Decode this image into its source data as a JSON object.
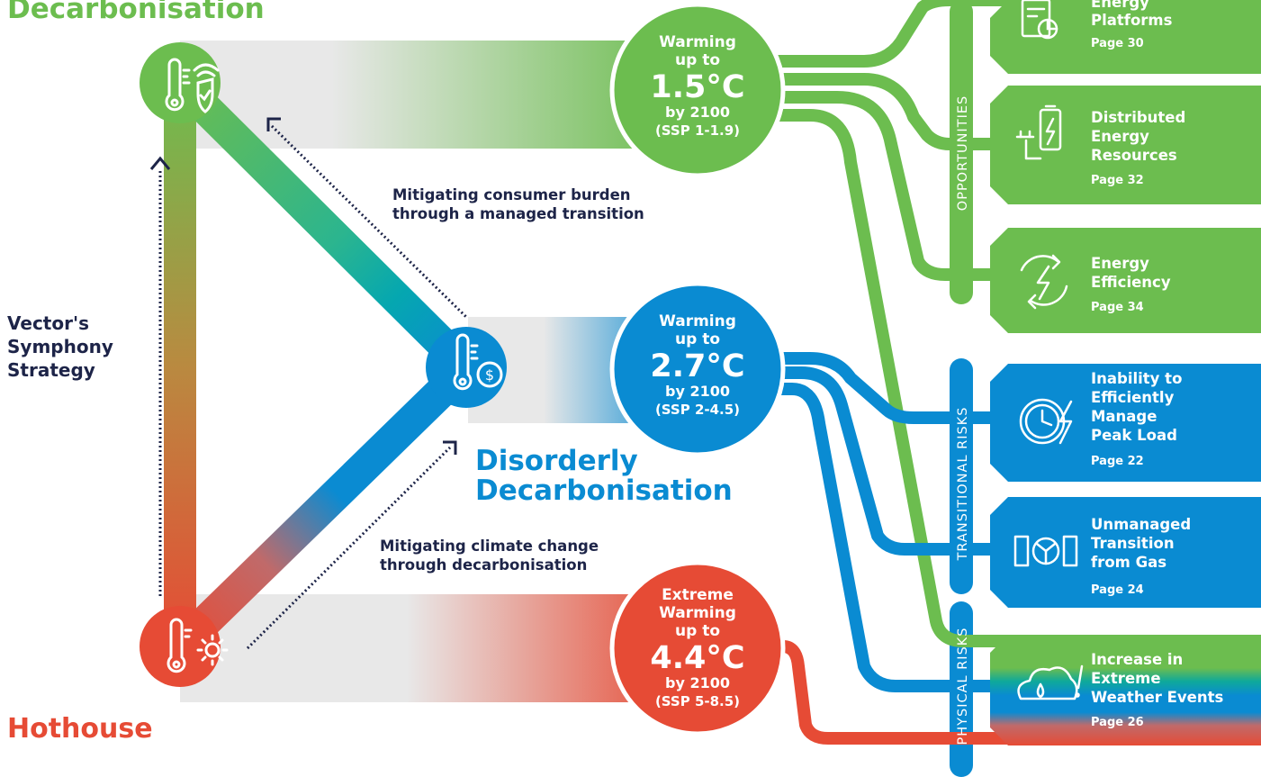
{
  "colors": {
    "green": "#6cbd4f",
    "blue": "#0a8bd2",
    "red": "#e64b35",
    "navy": "#1d2448",
    "grey": "#e8e8e8"
  },
  "scenarios": {
    "orderly": {
      "label": "Decarbonisation",
      "icon": "thermometer-shield-icon",
      "bubble": [
        "Warming",
        "up to",
        "1.5°C",
        "by 2100",
        "(SSP 1-1.9)"
      ]
    },
    "disorderly": {
      "label_line1": "Disorderly",
      "label_line2": "Decarbonisation",
      "icon": "thermometer-dollar-icon",
      "bubble": [
        "Warming",
        "up to",
        "2.7°C",
        "by 2100",
        "(SSP 2-4.5)"
      ]
    },
    "hothouse": {
      "label": "Hothouse",
      "icon": "thermometer-sun-icon",
      "bubble": [
        "Extreme",
        "Warming",
        "up to",
        "4.4°C",
        "by 2100",
        "(SSP 5-8.5)"
      ]
    }
  },
  "strategy": [
    "Vector's",
    "Symphony",
    "Strategy"
  ],
  "annotations": {
    "top": [
      "Mitigating consumer burden",
      "through a managed transition"
    ],
    "bottom": [
      "Mitigating climate change",
      "through decarbonisation"
    ]
  },
  "categories": {
    "opportunities": "OPPORTUNITIES",
    "transitional": "TRANSITIONAL RISKS",
    "physical": "PHYSICAL RISKS"
  },
  "cards": [
    {
      "icon": "platform-chart-icon",
      "lines": [
        "Energy",
        "Platforms"
      ],
      "page": "Page 30"
    },
    {
      "icon": "battery-plug-icon",
      "lines": [
        "Distributed",
        "Energy",
        "Resources"
      ],
      "page": "Page 32"
    },
    {
      "icon": "energy-cycle-icon",
      "lines": [
        "Energy",
        "Efficiency"
      ],
      "page": "Page 34"
    },
    {
      "icon": "clock-lightning-icon",
      "lines": [
        "Inability to",
        "Efficiently",
        "Manage",
        "Peak Load"
      ],
      "page": "Page 22"
    },
    {
      "icon": "gas-valve-icon",
      "lines": [
        "Unmanaged",
        "Transition",
        "from Gas"
      ],
      "page": "Page 24"
    },
    {
      "icon": "storm-cloud-icon",
      "lines": [
        "Increase in",
        "Extreme",
        "Weather Events"
      ],
      "page": "Page 26"
    }
  ]
}
